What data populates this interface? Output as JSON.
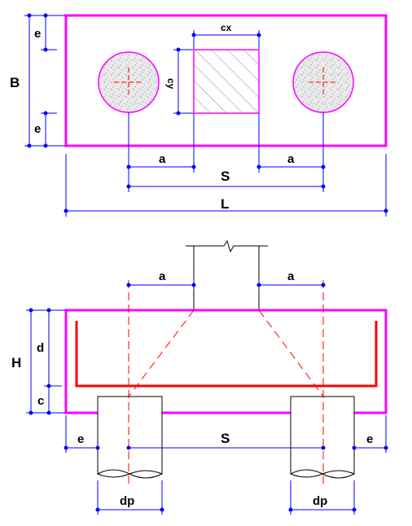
{
  "colors": {
    "outline": "#ff00ff",
    "dimension": "#0000ff",
    "rebar": "#ff0000",
    "centerline": "#ff0000",
    "pile": "#000000",
    "pile_fill": "#e6e6e6",
    "column_hatch": "#777777"
  },
  "plan_view": {
    "labels": {
      "e_top": "e",
      "e_bottom": "e",
      "B": "B",
      "cx": "cx",
      "cy": "cy",
      "a_left": "a",
      "a_right": "a",
      "S": "S",
      "L": "L"
    }
  },
  "section_view": {
    "labels": {
      "a_left": "a",
      "a_right": "a",
      "H": "H",
      "d": "d",
      "c": "c",
      "e_left": "e",
      "S": "S",
      "e_right": "e",
      "dp_left": "dp",
      "dp_right": "dp"
    }
  }
}
